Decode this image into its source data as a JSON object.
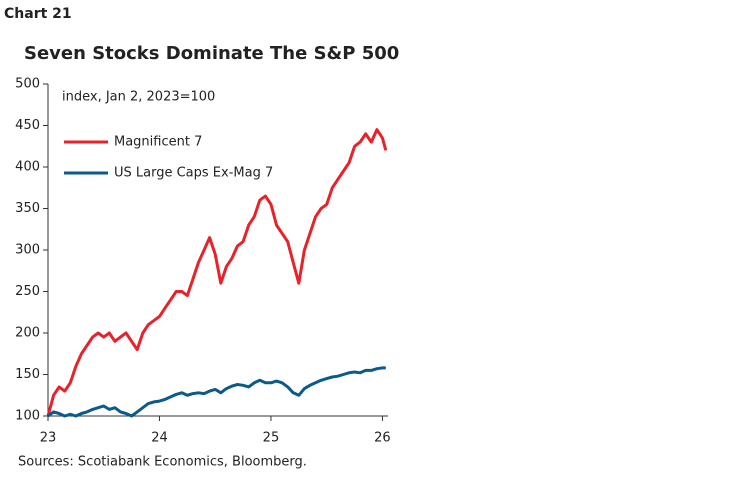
{
  "chart_label": "Chart 21",
  "chart_data": {
    "type": "line",
    "title": "Seven Stocks Dominate The S&P 500",
    "annotation": "index, Jan 2, 2023=100",
    "source": "Sources: Scotiabank Economics, Bloomberg.",
    "x": [
      23,
      23.05,
      23.1,
      23.15,
      23.2,
      23.25,
      23.3,
      23.35,
      23.4,
      23.45,
      23.5,
      23.55,
      23.6,
      23.65,
      23.7,
      23.75,
      23.8,
      23.85,
      23.9,
      23.95,
      24,
      24.05,
      24.1,
      24.15,
      24.2,
      24.25,
      24.3,
      24.35,
      24.4,
      24.45,
      24.5,
      24.55,
      24.6,
      24.65,
      24.7,
      24.75,
      24.8,
      24.85,
      24.9,
      24.95,
      25,
      25.05,
      25.1,
      25.15,
      25.2,
      25.25,
      25.3,
      25.35,
      25.4,
      25.45,
      25.5,
      25.55,
      25.6,
      25.65,
      25.7,
      25.75,
      25.8,
      25.85,
      25.9,
      25.95,
      26,
      26.03
    ],
    "series": [
      {
        "name": "Magnificent 7",
        "color": "#e8222a",
        "values": [
          100,
          125,
          135,
          130,
          140,
          160,
          175,
          185,
          195,
          200,
          195,
          200,
          190,
          195,
          200,
          190,
          180,
          200,
          210,
          215,
          220,
          230,
          240,
          250,
          250,
          245,
          265,
          285,
          300,
          315,
          295,
          260,
          280,
          290,
          305,
          310,
          330,
          340,
          360,
          365,
          355,
          330,
          320,
          310,
          285,
          260,
          300,
          320,
          340,
          350,
          355,
          375,
          385,
          395,
          405,
          425,
          430,
          440,
          430,
          445,
          435,
          420
        ]
      },
      {
        "name": "US Large Caps Ex-Mag 7",
        "color": "#0a5a8a",
        "values": [
          100,
          105,
          103,
          100,
          102,
          100,
          103,
          105,
          108,
          110,
          112,
          108,
          110,
          105,
          103,
          100,
          105,
          110,
          115,
          117,
          118,
          120,
          123,
          126,
          128,
          125,
          127,
          128,
          127,
          130,
          132,
          128,
          133,
          136,
          138,
          137,
          135,
          140,
          143,
          140,
          140,
          142,
          140,
          135,
          128,
          125,
          133,
          137,
          140,
          143,
          145,
          147,
          148,
          150,
          152,
          153,
          152,
          155,
          155,
          157,
          158,
          158
        ]
      }
    ],
    "xlim": [
      23,
      26.05
    ],
    "xticks": [
      23,
      24,
      25,
      26
    ],
    "ylim": [
      100,
      500
    ],
    "yticks": [
      100,
      150,
      200,
      250,
      300,
      350,
      400,
      450,
      500
    ],
    "grid": false
  }
}
